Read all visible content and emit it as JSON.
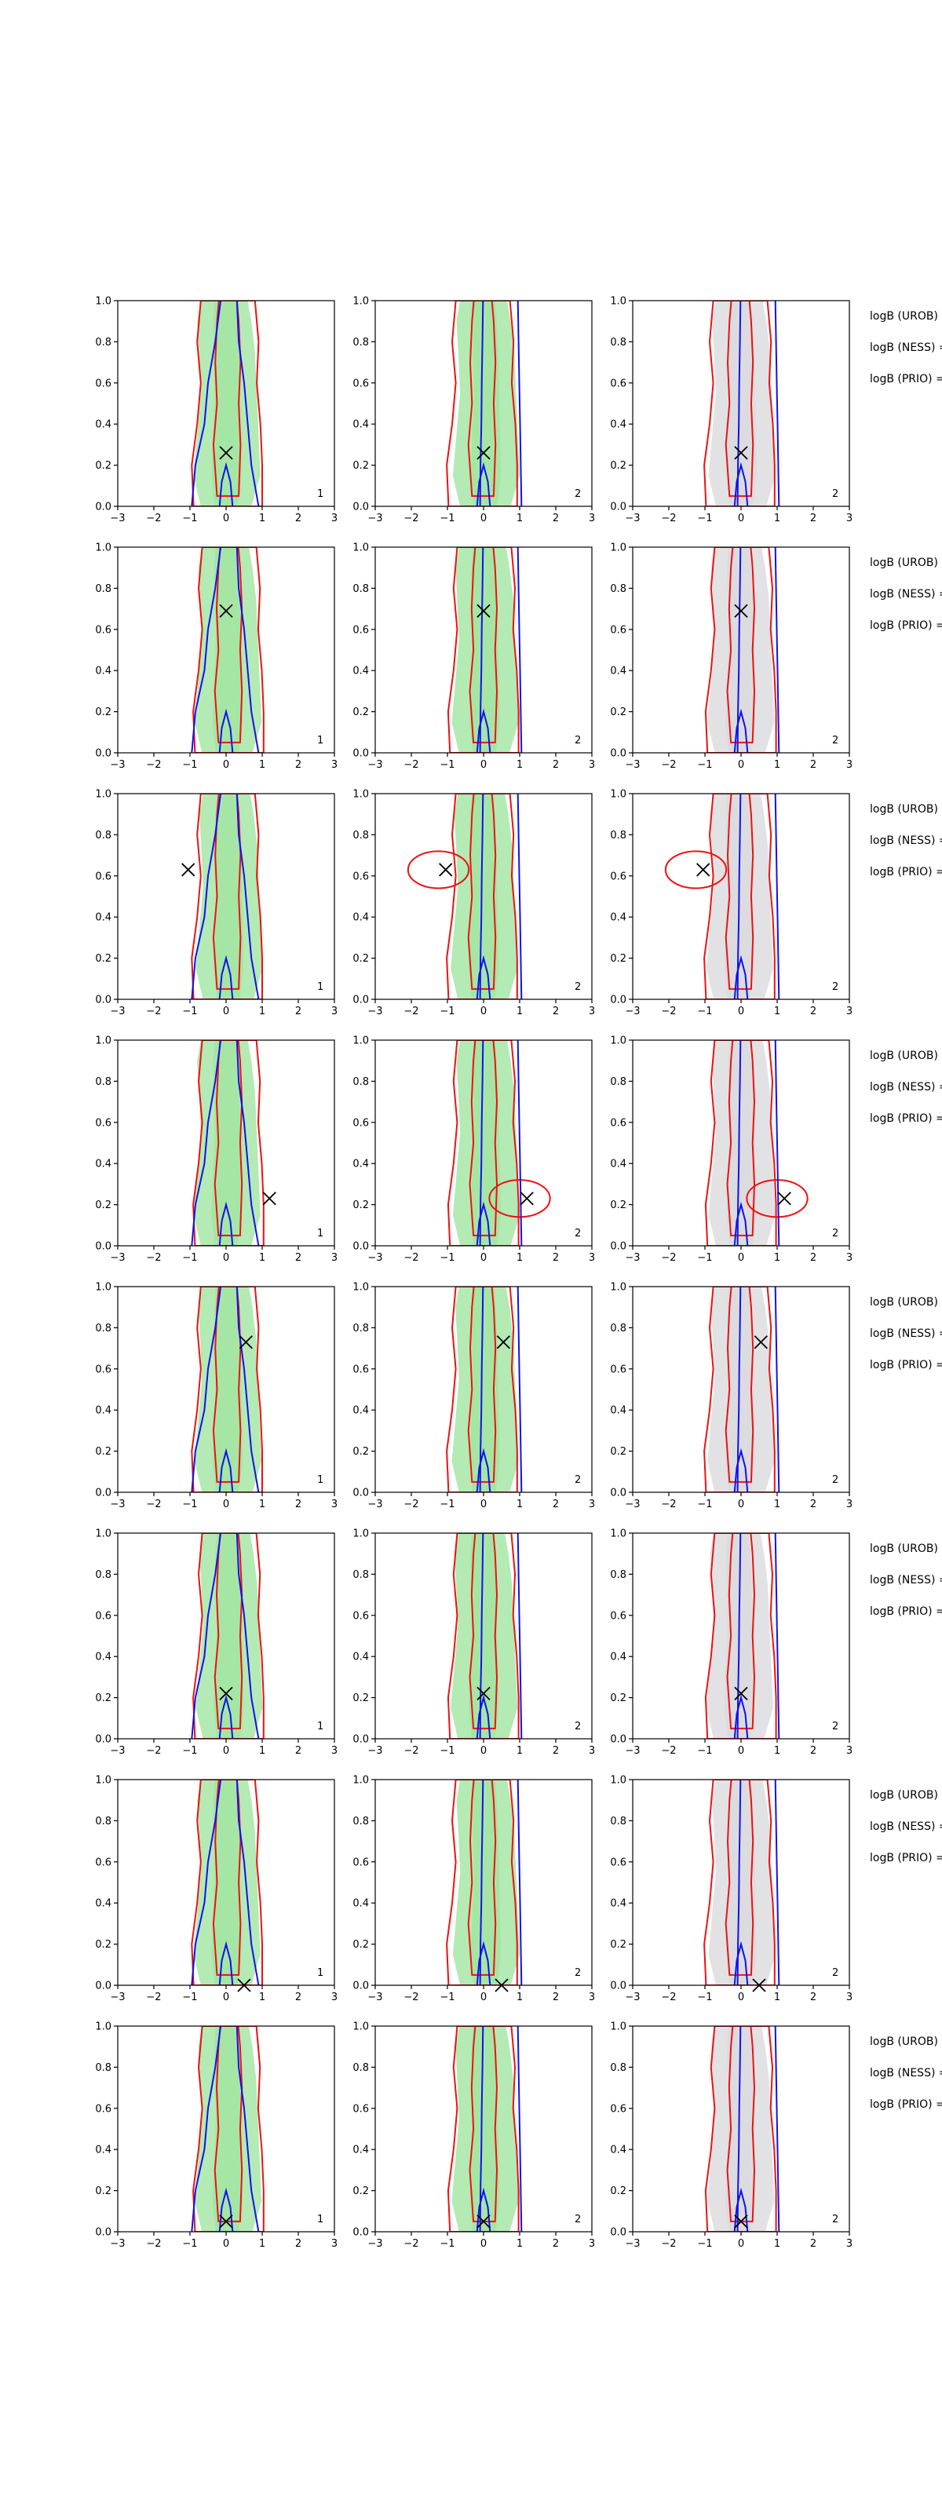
{
  "figure": {
    "colors": {
      "red": "#ee1111",
      "blue": "#1111ee",
      "green_fill": "#9be39b",
      "grey_fill": "#d8d8dc",
      "marker": "#000000"
    },
    "legend_labels": [
      "logB (UROB) =",
      "logB (NESS) =",
      "logB (PRIO) ="
    ]
  },
  "chart_data": {
    "type": "contour",
    "grid": "3 columns x 8 rows",
    "xlim": [
      -3,
      3
    ],
    "ylim": [
      0,
      1
    ],
    "x_ticks": [
      "−3",
      "−2",
      "−1",
      "0",
      "1",
      "2",
      "3"
    ],
    "y_ticks": [
      "0.0",
      "0.2",
      "0.4",
      "0.6",
      "0.8",
      "1.0"
    ],
    "column_labels": [
      "1",
      "2",
      "2"
    ],
    "grid_lines": false,
    "markers": [
      {
        "row": 1,
        "x": 0.0,
        "y": 0.26
      },
      {
        "row": 2,
        "x": 0.0,
        "y": 0.69
      },
      {
        "row": 3,
        "x": -1.05,
        "y": 0.63
      },
      {
        "row": 4,
        "x": 1.2,
        "y": 0.23
      },
      {
        "row": 5,
        "x": 0.55,
        "y": 0.73
      },
      {
        "row": 6,
        "x": 0.0,
        "y": 0.22
      },
      {
        "row": 7,
        "x": 0.5,
        "y": 0.0
      },
      {
        "row": 8,
        "x": 0.0,
        "y": 0.05
      }
    ]
  }
}
